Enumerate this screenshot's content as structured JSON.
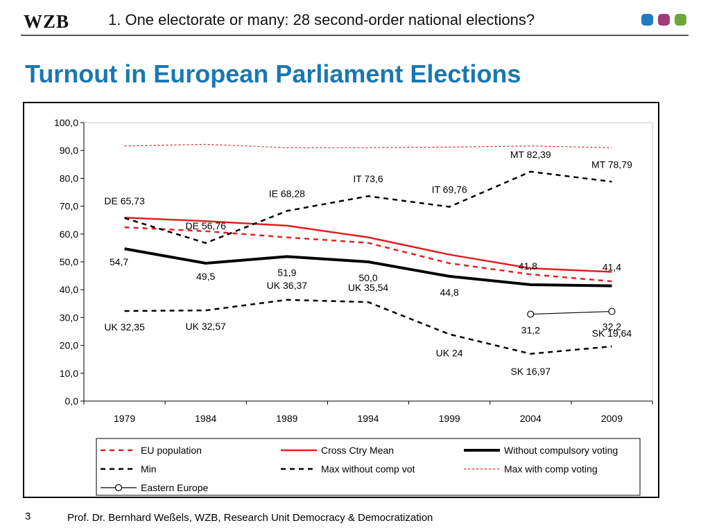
{
  "header": {
    "logo": "WZB",
    "title": "1. One electorate or many: 28 second-order national elections?",
    "dot_colors": [
      "#1f7cc0",
      "#a23a7a",
      "#6aa83c"
    ]
  },
  "slide_title": "Turnout in European Parliament Elections",
  "title_color": "#1878b4",
  "footer": {
    "page_number": "3",
    "text": "Prof. Dr. Bernhard Weßels, WZB, Research Unit Democracy & Democratization"
  },
  "chart_data": {
    "type": "line",
    "categories": [
      "1979",
      "1984",
      "1989",
      "1994",
      "1999",
      "2004",
      "2009"
    ],
    "ylim": [
      0,
      100
    ],
    "yticks": [
      0,
      10,
      20,
      30,
      40,
      50,
      60,
      70,
      80,
      90,
      100
    ],
    "ytick_labels": [
      "0,0",
      "10,0",
      "20,0",
      "30,0",
      "40,0",
      "50,0",
      "60,0",
      "70,0",
      "80,0",
      "90,0",
      "100,0"
    ],
    "grid": false,
    "legend_position": "bottom",
    "series": [
      {
        "name": "EU population",
        "style": "dashed",
        "color": "#e02020",
        "values": [
          62.4,
          61.0,
          58.8,
          56.8,
          49.5,
          45.5,
          43.0
        ]
      },
      {
        "name": "Cross Ctry Mean",
        "style": "solid",
        "color": "#e02020",
        "values": [
          65.9,
          64.6,
          63.0,
          58.8,
          52.6,
          47.7,
          46.4
        ]
      },
      {
        "name": "Without compulsory voting",
        "style": "solid-thick",
        "color": "#000000",
        "values": [
          54.7,
          49.5,
          51.9,
          50.0,
          44.8,
          41.8,
          41.4
        ]
      },
      {
        "name": "Min",
        "style": "dashed",
        "color": "#000000",
        "values": [
          32.35,
          32.57,
          36.37,
          35.54,
          24.0,
          16.97,
          19.64
        ]
      },
      {
        "name": "Max without comp vot",
        "style": "dashed",
        "color": "#000000",
        "values": [
          65.73,
          56.76,
          68.28,
          73.6,
          69.76,
          82.39,
          78.79
        ]
      },
      {
        "name": "Max with comp voting",
        "style": "dotted",
        "color": "#e02020",
        "values": [
          91.6,
          92.2,
          91.0,
          91.0,
          91.2,
          91.6,
          91.0
        ]
      },
      {
        "name": "Eastern Europe",
        "style": "solid-marker",
        "color": "#000000",
        "values": [
          null,
          null,
          null,
          null,
          null,
          31.2,
          32.2
        ]
      }
    ],
    "annotations": [
      {
        "text": "DE 65,73",
        "cat": 0
      },
      {
        "text": "DE 56,76",
        "cat": 1
      },
      {
        "text": "IE 68,28",
        "cat": 2
      },
      {
        "text": "IT 73,6",
        "cat": 3
      },
      {
        "text": "IT 69,76",
        "cat": 4
      },
      {
        "text": "MT 82,39",
        "cat": 5
      },
      {
        "text": "MT 78,79",
        "cat": 6
      },
      {
        "text": "54,7",
        "cat": 0
      },
      {
        "text": "49,5",
        "cat": 1
      },
      {
        "text": "51,9",
        "cat": 2
      },
      {
        "text": "50,0",
        "cat": 3
      },
      {
        "text": "44,8",
        "cat": 4
      },
      {
        "text": "41,8",
        "cat": 5
      },
      {
        "text": "41,4",
        "cat": 6
      },
      {
        "text": "UK 32,35",
        "cat": 0
      },
      {
        "text": "UK 32,57",
        "cat": 1
      },
      {
        "text": "UK 36,37",
        "cat": 2
      },
      {
        "text": "UK 35,54",
        "cat": 3
      },
      {
        "text": "UK 24",
        "cat": 4
      },
      {
        "text": "SK 16,97",
        "cat": 5
      },
      {
        "text": "SK 19,64",
        "cat": 6
      },
      {
        "text": "31,2",
        "cat": 5
      },
      {
        "text": "32,2",
        "cat": 6
      }
    ]
  }
}
